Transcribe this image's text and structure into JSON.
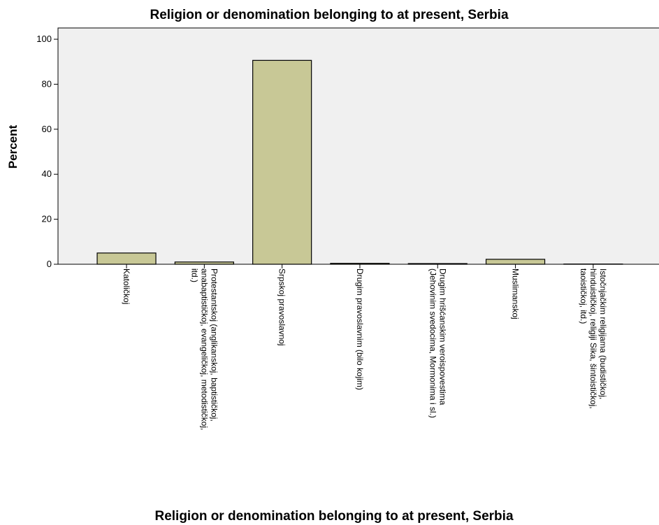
{
  "chart_data": {
    "type": "bar",
    "title": "Religion or denomination belonging to at present, Serbia",
    "x_label": "Religion or denomination belonging to at present, Serbia",
    "y_label": "Percent",
    "categories": [
      [
        "Katoličkoj"
      ],
      [
        "Protestantskoj (anglikanskoj, baptističkoj,",
        "anabaptističkoj, evangeličkoj, metodističkoj,",
        "itd.)"
      ],
      [
        "Srpskoj pravoslavnoj"
      ],
      [
        "Drugim pravoslavnim (bilo kojim)"
      ],
      [
        "Drugim hrišćanskim veroispovestima",
        "(Jehovinim svedocima, Mormonima i sl.)"
      ],
      [
        "Muslimanskoj"
      ],
      [
        "Istočnjačkim religijama (budističkoj,",
        "hinduističkoj, religiji Sika, šintoističkoj,",
        "taoističkoj, itd.)"
      ]
    ],
    "values": [
      5,
      1,
      90.6,
      0.4,
      0.3,
      2.2,
      0.1
    ],
    "color": "#c8c896",
    "ylim": [
      0,
      105
    ],
    "yticks": [
      0,
      20,
      40,
      60,
      80,
      100
    ],
    "grid": false
  }
}
